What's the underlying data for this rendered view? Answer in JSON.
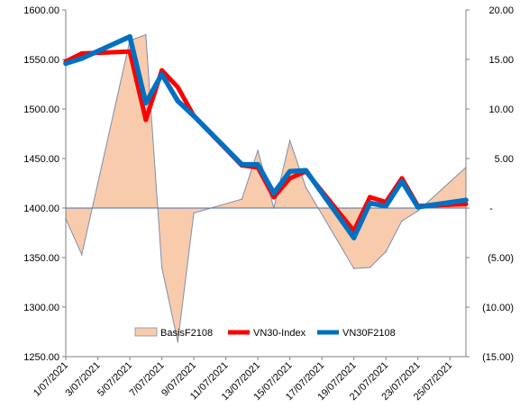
{
  "chart_data": {
    "type": "line",
    "title": "",
    "xlabel": "",
    "ylabel": "",
    "y2label": "",
    "x_tick_labels": [
      "1/07/2021",
      "3/07/2021",
      "5/07/2021",
      "7/07/2021",
      "9/07/2021",
      "11/07/2021",
      "13/07/2021",
      "15/07/2021",
      "17/07/2021",
      "19/07/2021",
      "21/07/2021",
      "23/07/2021",
      "25/07/2021"
    ],
    "x_range": [
      "2021-07-01",
      "2021-07-26"
    ],
    "ylim": [
      1250,
      1600
    ],
    "y_ticks": [
      1250,
      1300,
      1350,
      1400,
      1450,
      1500,
      1550,
      1600
    ],
    "y_tick_labels": [
      "1250.00",
      "1300.00",
      "1350.00",
      "1400.00",
      "1450.00",
      "1500.00",
      "1550.00",
      "1600.00"
    ],
    "y2lim": [
      -15,
      20
    ],
    "y2_ticks": [
      -15,
      -10,
      -5,
      0,
      5,
      10,
      15,
      20
    ],
    "y2_tick_labels": [
      "(15.00)",
      "(10.00)",
      "(5.00)",
      "-",
      "5.00",
      "10.00",
      "15.00",
      "20.00"
    ],
    "legend_position": "bottom-center",
    "grid": false,
    "series": [
      {
        "name": "BasisF2108",
        "kind": "area",
        "axis": "right",
        "color": "#f8cbad",
        "edge_color": "#7f8fa9",
        "x": [
          "2021-07-01",
          "2021-07-02",
          "2021-07-05",
          "2021-07-06",
          "2021-07-07",
          "2021-07-08",
          "2021-07-09",
          "2021-07-12",
          "2021-07-13",
          "2021-07-14",
          "2021-07-15",
          "2021-07-16",
          "2021-07-19",
          "2021-07-20",
          "2021-07-21",
          "2021-07-22",
          "2021-07-23",
          "2021-07-26"
        ],
        "y": [
          -1.1,
          -4.7,
          16.9,
          17.5,
          -6.0,
          -13.5,
          -0.5,
          0.9,
          5.8,
          0.0,
          6.8,
          2.1,
          -6.1,
          -6.0,
          -4.4,
          -1.3,
          -0.3,
          4.1
        ]
      },
      {
        "name": "VN30-Index",
        "kind": "line",
        "axis": "left",
        "color": "#ff0000",
        "x": [
          "2021-07-01",
          "2021-07-02",
          "2021-07-05",
          "2021-07-06",
          "2021-07-07",
          "2021-07-08",
          "2021-07-09",
          "2021-07-12",
          "2021-07-13",
          "2021-07-14",
          "2021-07-15",
          "2021-07-16",
          "2021-07-19",
          "2021-07-20",
          "2021-07-21",
          "2021-07-22",
          "2021-07-23",
          "2021-07-26"
        ],
        "y": [
          1548,
          1556,
          1558,
          1489,
          1539,
          1522,
          1493,
          1443,
          1441,
          1411,
          1430,
          1437,
          1377,
          1411,
          1406,
          1430,
          1402,
          1404
        ]
      },
      {
        "name": "VN30F2108",
        "kind": "line",
        "axis": "left",
        "color": "#0070c0",
        "x": [
          "2021-07-01",
          "2021-07-02",
          "2021-07-05",
          "2021-07-06",
          "2021-07-07",
          "2021-07-08",
          "2021-07-09",
          "2021-07-12",
          "2021-07-13",
          "2021-07-14",
          "2021-07-15",
          "2021-07-16",
          "2021-07-19",
          "2021-07-20",
          "2021-07-21",
          "2021-07-22",
          "2021-07-23",
          "2021-07-26"
        ],
        "y": [
          1546,
          1551,
          1573,
          1506,
          1535,
          1508,
          1493,
          1444,
          1444,
          1415,
          1437,
          1438,
          1370,
          1405,
          1402,
          1427,
          1401,
          1408
        ]
      }
    ]
  }
}
